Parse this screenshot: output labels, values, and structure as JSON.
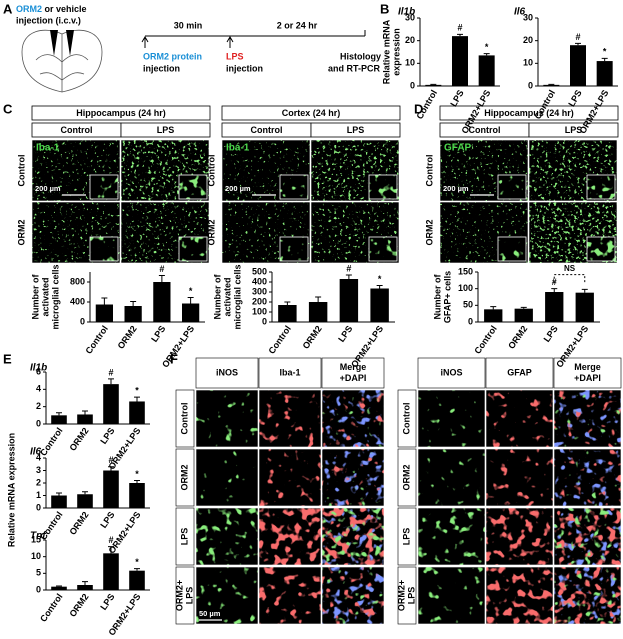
{
  "panels": {
    "A": {
      "label": "A",
      "drug": "ORM2",
      "drug_rest": " or vehicle",
      "route": "injection (i.c.v.)",
      "interval1": "30 min",
      "interval2": "2 or 24 hr",
      "step1": [
        "ORM2 protein",
        "injection"
      ],
      "step2": [
        "LPS",
        "injection"
      ],
      "step3": [
        "Histology",
        "and RT-PCR"
      ]
    },
    "B": {
      "label": "B"
    },
    "C": {
      "label": "C",
      "groups": [
        {
          "title": "Hippocampus (24 hr)",
          "columns": [
            "Control",
            "LPS"
          ],
          "rows": [
            "Control",
            "ORM2"
          ],
          "stain": "Iba-1",
          "scale": "200 µm"
        },
        {
          "title": "Cortex (24 hr)",
          "columns": [
            "Control",
            "LPS"
          ],
          "rows": [
            "Control",
            "ORM2"
          ],
          "stain": "Iba-1",
          "scale": "200 µm"
        }
      ]
    },
    "D": {
      "label": "D",
      "groups": [
        {
          "title": "Hippocampus (24 hr)",
          "columns": [
            "Control",
            "LPS"
          ],
          "rows": [
            "Control",
            "ORM2"
          ],
          "stain": "GFAP",
          "scale": "200 µm"
        }
      ]
    },
    "E": {
      "label": "E",
      "ylabel": "Relative mRNA expression"
    },
    "F": {
      "label": "F",
      "scale": "50 µm",
      "rows": [
        [
          "Control"
        ],
        [
          "ORM2"
        ],
        [
          "LPS"
        ],
        [
          "ORM2+",
          "LPS"
        ]
      ],
      "groups": [
        {
          "columns": [
            [
              "iNOS"
            ],
            [
              "Iba-1"
            ],
            [
              "Merge",
              "+DAPI"
            ]
          ]
        },
        {
          "columns": [
            [
              "iNOS"
            ],
            [
              "GFAP"
            ],
            [
              "Merge",
              "+DAPI"
            ]
          ]
        }
      ]
    }
  },
  "chart_data": [
    {
      "type": "bar",
      "title": "Il1b",
      "ylabel_lines": [
        "Relative mRNA",
        "expression"
      ],
      "categories": [
        "Control",
        "LPS",
        "ORM2+LPS"
      ],
      "values": [
        0.5,
        22,
        13.5
      ],
      "errors": [
        0.2,
        0.8,
        0.8
      ],
      "ylim": [
        0,
        30
      ],
      "yticks": [
        0,
        10,
        20,
        30
      ],
      "color": "#000000",
      "annotations": [
        {
          "category": "LPS",
          "text": "#"
        },
        {
          "category": "ORM2+LPS",
          "text": "*"
        }
      ]
    },
    {
      "type": "bar",
      "title": "Il6",
      "categories": [
        "Control",
        "LPS",
        "ORM2+LPS"
      ],
      "values": [
        0.5,
        18,
        11
      ],
      "errors": [
        0.2,
        0.8,
        1.2
      ],
      "ylim": [
        0,
        30
      ],
      "yticks": [
        0,
        10,
        20,
        30
      ],
      "color": "#000000",
      "annotations": [
        {
          "category": "LPS",
          "text": "#"
        },
        {
          "category": "ORM2+LPS",
          "text": "*"
        }
      ]
    },
    {
      "type": "bar",
      "ylabel_lines": [
        "Number of",
        "activated",
        "microglial cells"
      ],
      "categories": [
        "Control",
        "ORM2",
        "LPS",
        "ORM2+LPS"
      ],
      "values": [
        350,
        320,
        800,
        370
      ],
      "errors": [
        130,
        90,
        130,
        120
      ],
      "ylim": [
        0,
        1000
      ],
      "yticks": [
        0,
        400,
        800
      ],
      "color": "#000000",
      "annotations": [
        {
          "category": "LPS",
          "text": "#"
        },
        {
          "category": "ORM2+LPS",
          "text": "*"
        }
      ]
    },
    {
      "type": "bar",
      "ylabel_lines": [
        "Number of",
        "activated",
        "microglial cells"
      ],
      "categories": [
        "Control",
        "ORM2",
        "LPS",
        "ORM2+LPS"
      ],
      "values": [
        170,
        200,
        430,
        335
      ],
      "errors": [
        30,
        50,
        40,
        30
      ],
      "ylim": [
        0,
        500
      ],
      "yticks": [
        0,
        100,
        200,
        300,
        400,
        500
      ],
      "color": "#000000",
      "annotations": [
        {
          "category": "LPS",
          "text": "#"
        },
        {
          "category": "ORM2+LPS",
          "text": "*"
        }
      ]
    },
    {
      "type": "bar",
      "ylabel_lines": [
        "Number of",
        "GFAP+ cells"
      ],
      "categories": [
        "Control",
        "ORM2",
        "LPS",
        "ORM2+LPS"
      ],
      "values": [
        38,
        40,
        90,
        88
      ],
      "errors": [
        8,
        4,
        10,
        10
      ],
      "ylim": [
        0,
        150
      ],
      "yticks": [
        0,
        50,
        100,
        150
      ],
      "color": "#000000",
      "annotations": [
        {
          "category": "LPS",
          "text": "#"
        }
      ],
      "bracket": {
        "from": "LPS",
        "to": "ORM2+LPS",
        "text": "NS"
      }
    },
    {
      "type": "bar",
      "title": "Il1b",
      "categories": [
        "Control",
        "ORM2",
        "LPS",
        "ORM2+LPS"
      ],
      "values": [
        1,
        1.1,
        4.6,
        2.6
      ],
      "errors": [
        0.3,
        0.4,
        0.6,
        0.5
      ],
      "ylim": [
        0,
        6
      ],
      "yticks": [
        0,
        2,
        4,
        6
      ],
      "color": "#000000",
      "annotations": [
        {
          "category": "LPS",
          "text": "#"
        },
        {
          "category": "ORM2+LPS",
          "text": "*"
        }
      ]
    },
    {
      "type": "bar",
      "title": "Il6",
      "categories": [
        "Control",
        "ORM2",
        "LPS",
        "ORM2+LPS"
      ],
      "values": [
        1,
        1.1,
        3,
        2
      ],
      "errors": [
        0.2,
        0.2,
        0.3,
        0.2
      ],
      "ylim": [
        0,
        4
      ],
      "yticks": [
        0,
        1,
        2,
        3,
        4
      ],
      "color": "#000000",
      "annotations": [
        {
          "category": "LPS",
          "text": "#"
        },
        {
          "category": "ORM2+LPS",
          "text": "*"
        }
      ]
    },
    {
      "type": "bar",
      "title": "Tnf",
      "categories": [
        "Control",
        "ORM2",
        "LPS",
        "ORM2+LPS"
      ],
      "values": [
        1,
        1.5,
        11,
        5.8
      ],
      "errors": [
        0.2,
        1,
        2,
        0.6
      ],
      "ylim": [
        0,
        15
      ],
      "yticks": [
        0,
        5,
        10,
        15
      ],
      "color": "#000000",
      "annotations": [
        {
          "category": "LPS",
          "text": "#"
        },
        {
          "category": "ORM2+LPS",
          "text": "*"
        }
      ]
    }
  ]
}
